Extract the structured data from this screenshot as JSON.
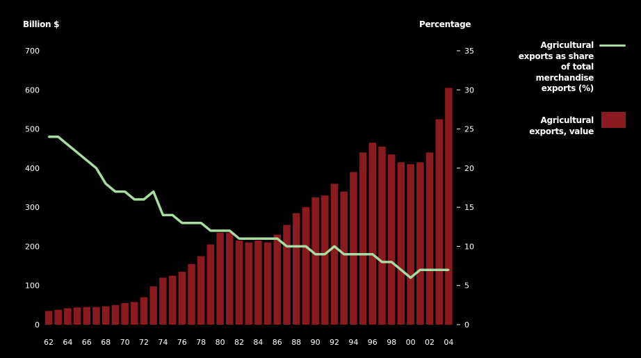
{
  "chart_data": {
    "type": "bar+line",
    "left_axis_title": "Billion $",
    "right_axis_title": "Percentage",
    "left_ylim": [
      0,
      700
    ],
    "left_ticks": [
      "0",
      "100",
      "200",
      "300",
      "400",
      "500",
      "600",
      "700"
    ],
    "right_ylim": [
      0,
      35
    ],
    "right_ticks": [
      "0",
      "5",
      "10",
      "15",
      "20",
      "25",
      "30",
      "35"
    ],
    "x_tick_labels": [
      "62",
      "64",
      "66",
      "68",
      "70",
      "72",
      "74",
      "76",
      "78",
      "80",
      "82",
      "84",
      "86",
      "88",
      "90",
      "92",
      "94",
      "96",
      "98",
      "00",
      "02",
      "04"
    ],
    "years": [
      1962,
      1963,
      1964,
      1965,
      1966,
      1967,
      1968,
      1969,
      1970,
      1971,
      1972,
      1973,
      1974,
      1975,
      1976,
      1977,
      1978,
      1979,
      1980,
      1981,
      1982,
      1983,
      1984,
      1985,
      1986,
      1987,
      1988,
      1989,
      1990,
      1991,
      1992,
      1993,
      1994,
      1995,
      1996,
      1997,
      1998,
      1999,
      2000,
      2001,
      2002,
      2003,
      2004
    ],
    "series": [
      {
        "name": "Agricultural exports, value",
        "kind": "bar",
        "color": "#8b1a1e",
        "axis": "left",
        "values": [
          35,
          38,
          42,
          44,
          45,
          45,
          47,
          50,
          55,
          58,
          70,
          98,
          120,
          125,
          135,
          155,
          175,
          205,
          235,
          235,
          215,
          210,
          215,
          210,
          230,
          255,
          285,
          300,
          325,
          330,
          360,
          340,
          390,
          440,
          465,
          455,
          435,
          415,
          410,
          415,
          440,
          525,
          605
        ]
      },
      {
        "name": "Agricultural exports as share of total merchandise exports (%)",
        "kind": "line",
        "color": "#a8dca0",
        "axis": "right",
        "values": [
          24,
          24,
          23,
          22,
          21,
          20,
          18,
          17,
          17,
          16,
          16,
          17,
          14,
          14,
          13,
          13,
          13,
          12,
          12,
          12,
          11,
          11,
          11,
          11,
          11,
          10,
          10,
          10,
          9,
          9,
          10,
          9,
          9,
          9,
          9,
          8,
          8,
          7,
          6,
          7,
          7,
          7,
          7
        ]
      }
    ]
  },
  "legend": {
    "line_label": "Agricultural exports as share of total merchandise exports (%)",
    "bar_label": "Agricultural exports, value"
  }
}
